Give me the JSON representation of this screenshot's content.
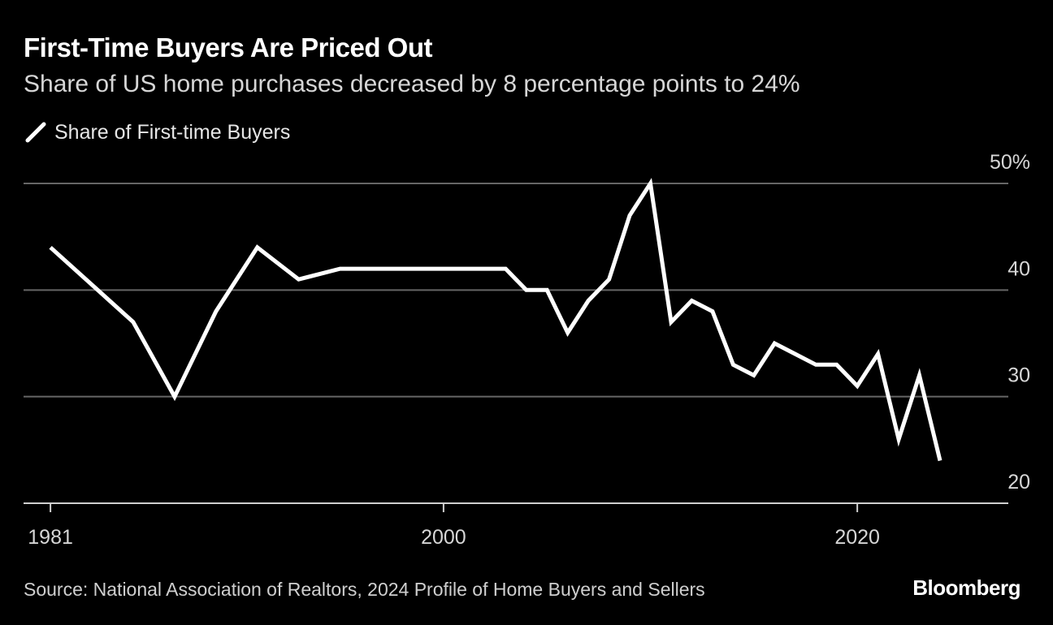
{
  "header": {
    "title": "First-Time Buyers Are Priced Out",
    "subtitle": "Share of US home purchases decreased by 8 percentage points to 24%"
  },
  "legend": {
    "label": "Share of First-time Buyers",
    "icon": "line-swatch-icon"
  },
  "footer": {
    "source": "Source: National Association of Realtors, 2024 Profile of Home Buyers and Sellers",
    "brand": "Bloomberg"
  },
  "colors": {
    "background": "#000000",
    "line": "#ffffff",
    "grid": "#666666"
  },
  "chart_data": {
    "type": "line",
    "title": "First-Time Buyers Are Priced Out",
    "subtitle": "Share of US home purchases decreased by 8 percentage points to 24%",
    "xlabel": "",
    "ylabel": "",
    "xlim": [
      1979.7,
      2027.3
    ],
    "ylim": [
      20,
      50
    ],
    "y_ticks": [
      50,
      40,
      30,
      20
    ],
    "y_tick_labels": [
      "50%",
      "40",
      "30",
      "20"
    ],
    "x_ticks": [
      1981,
      2000,
      2020
    ],
    "x_tick_labels": [
      "1981",
      "2000",
      "2020"
    ],
    "grid": true,
    "legend_position": "top-left",
    "series": [
      {
        "name": "Share of First-time Buyers",
        "x": [
          1981,
          1985,
          1987,
          1989,
          1991,
          1993,
          1995,
          1997,
          1999,
          2001,
          2003,
          2004,
          2005,
          2006,
          2007,
          2008,
          2009,
          2010,
          2011,
          2012,
          2013,
          2014,
          2015,
          2016,
          2017,
          2018,
          2019,
          2020,
          2021,
          2022,
          2023,
          2024
        ],
        "values": [
          44,
          37,
          30,
          38,
          44,
          41,
          42,
          42,
          42,
          42,
          42,
          40,
          40,
          36,
          39,
          41,
          47,
          50,
          37,
          39,
          38,
          33,
          32,
          35,
          34,
          33,
          33,
          31,
          34,
          26,
          32,
          24
        ]
      }
    ]
  }
}
